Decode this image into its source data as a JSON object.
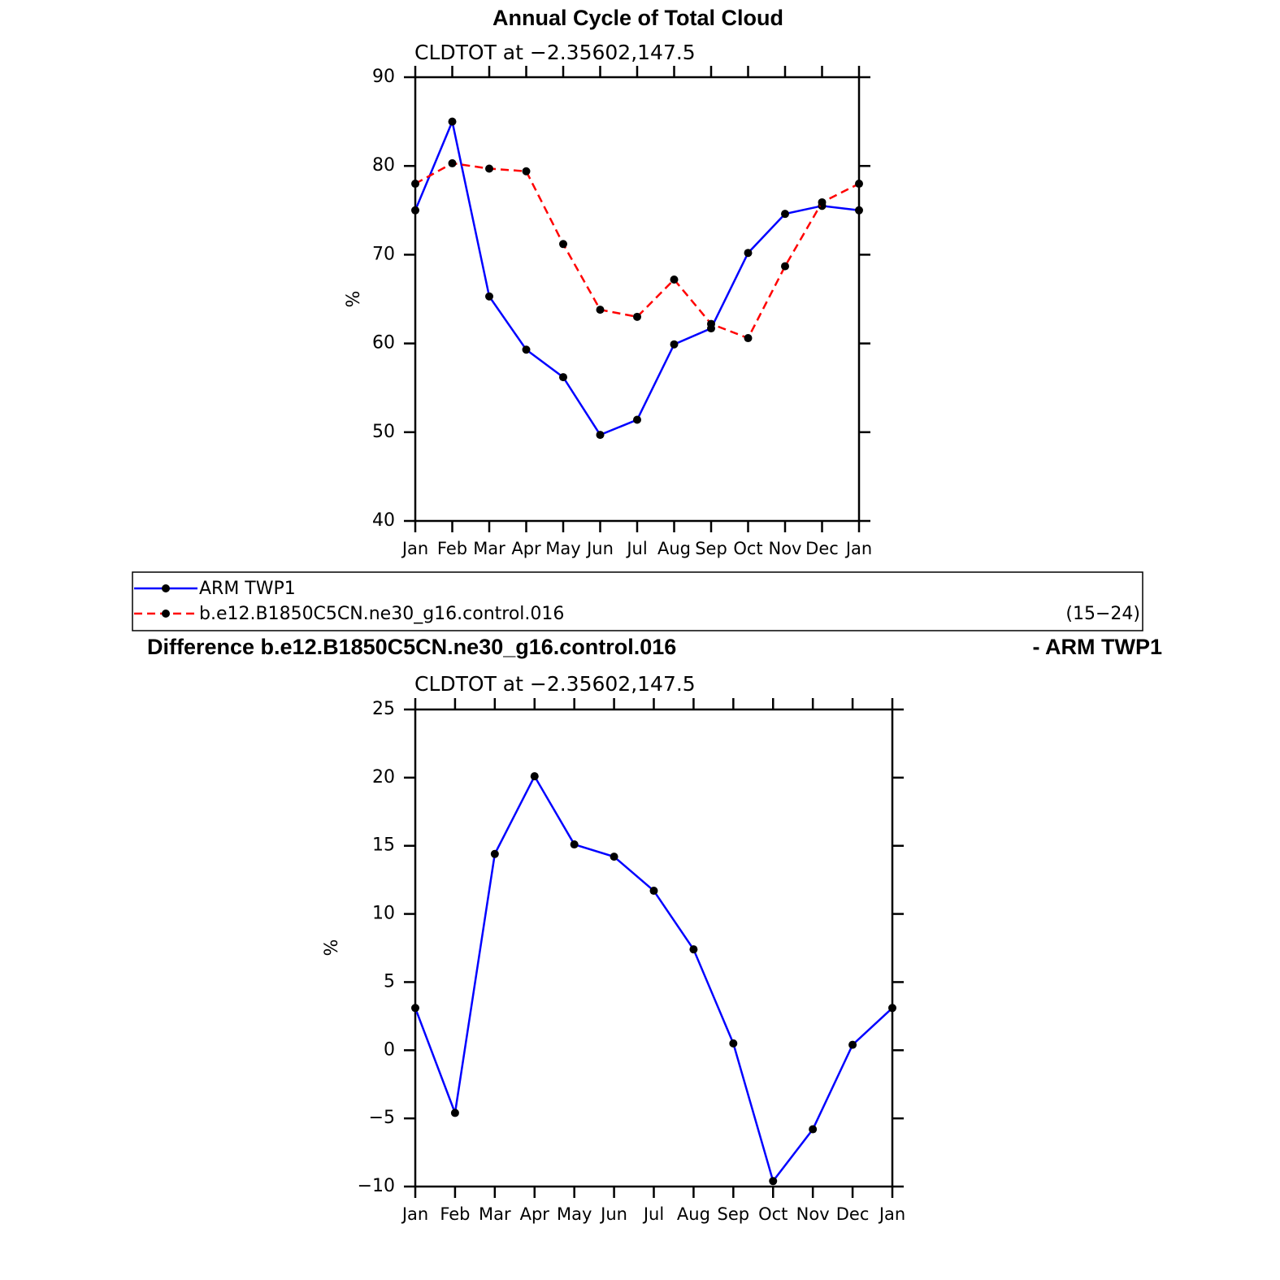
{
  "chart_data": [
    {
      "type": "line",
      "title": "Annual Cycle of Total Cloud",
      "subtitle": "CLDTOT at −2.35602,147.5",
      "y_label": "%",
      "categories": [
        "Jan",
        "Feb",
        "Mar",
        "Apr",
        "May",
        "Jun",
        "Jul",
        "Aug",
        "Sep",
        "Oct",
        "Nov",
        "Dec",
        "Jan"
      ],
      "ylim": [
        40,
        90
      ],
      "yticks": [
        40,
        50,
        60,
        70,
        80,
        90
      ],
      "marker_color": "#000000",
      "series": [
        {
          "name": "ARM TWP1",
          "color": "#0000ff",
          "line_style": "solid",
          "values": [
            75,
            85,
            65.3,
            59.3,
            56.2,
            49.7,
            51.4,
            59.9,
            61.7,
            70.2,
            74.6,
            75.5,
            75
          ]
        },
        {
          "name": "b.e12.B1850C5CN.ne30_g16.control.016",
          "color": "#ff0000",
          "line_style": "dashed",
          "values": [
            78,
            80.3,
            79.7,
            79.4,
            71.2,
            63.8,
            63,
            67.2,
            62.2,
            60.6,
            68.7,
            75.9,
            78
          ]
        }
      ],
      "legend_note": "(15−24)"
    },
    {
      "type": "line",
      "title": "Difference b.e12.B1850C5CN.ne30_g16.control.016",
      "title_right": "- ARM TWP1",
      "subtitle": "CLDTOT at −2.35602,147.5",
      "y_label": "%",
      "categories": [
        "Jan",
        "Feb",
        "Mar",
        "Apr",
        "May",
        "Jun",
        "Jul",
        "Aug",
        "Sep",
        "Oct",
        "Nov",
        "Dec",
        "Jan"
      ],
      "ylim": [
        -10,
        25
      ],
      "yticks": [
        {
          "value": -10,
          "label": "−10"
        },
        {
          "value": -5,
          "label": "−5"
        },
        0,
        5,
        10,
        15,
        20,
        25
      ],
      "marker_color": "#000000",
      "series": [
        {
          "color": "#0000ff",
          "line_style": "solid",
          "values": [
            3.1,
            -4.6,
            14.4,
            20.1,
            15.1,
            14.2,
            11.7,
            7.4,
            0.5,
            -9.6,
            -5.8,
            0.4,
            3.1
          ]
        }
      ]
    }
  ]
}
